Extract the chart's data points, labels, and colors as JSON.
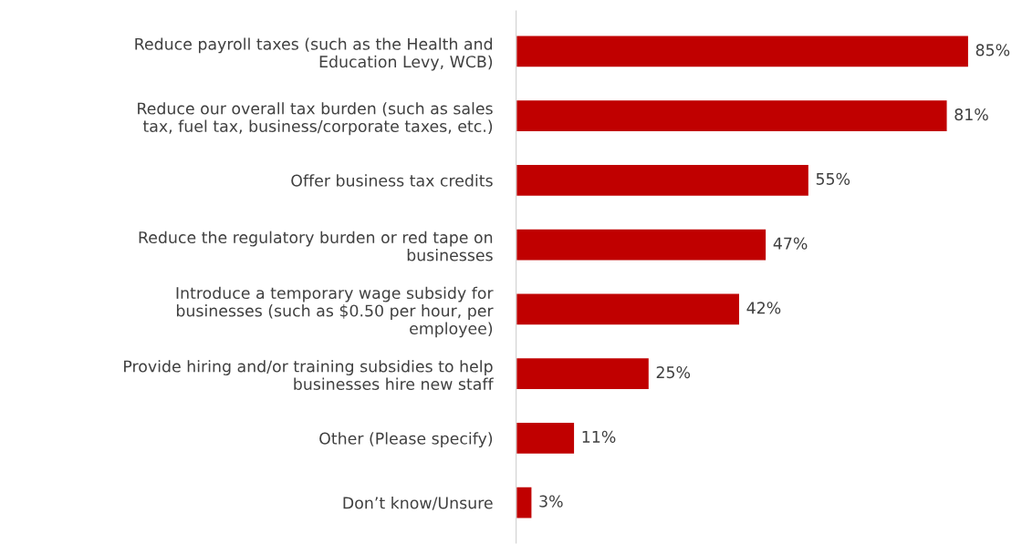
{
  "chart_data": {
    "type": "bar",
    "orientation": "horizontal",
    "categories": [
      "Reduce payroll taxes (such as the Health and Education Levy, WCB)",
      "Reduce our overall tax burden (such as sales tax, fuel tax, business/corporate taxes, etc.)",
      "Offer business tax credits",
      "Reduce the regulatory burden or red tape on businesses",
      "Introduce a temporary wage subsidy for businesses (such as $0.50 per hour, per employee)",
      "Provide hiring and/or training subsidies to help businesses hire new staff",
      "Other (Please specify)",
      "Don’t know/Unsure"
    ],
    "values": [
      85,
      81,
      55,
      47,
      42,
      25,
      11,
      3
    ],
    "value_labels": [
      "85%",
      "81%",
      "55%",
      "47%",
      "42%",
      "25%",
      "11%",
      "3%"
    ],
    "color": "#c00000",
    "grid": false,
    "legend": false
  }
}
